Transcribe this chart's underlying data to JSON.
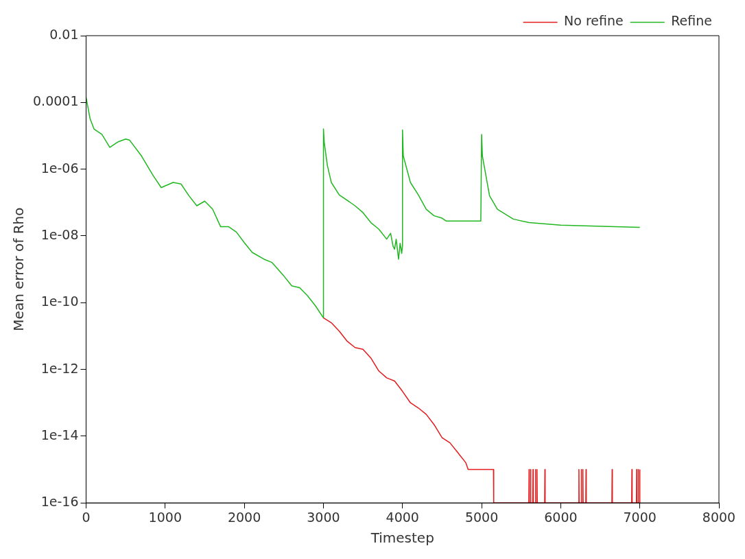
{
  "chart_data": {
    "type": "line",
    "xlabel": "Timestep",
    "ylabel": "Mean error of Rho",
    "log": "y",
    "legend": "top right",
    "marker": "none",
    "line_style": "solid",
    "grid": false,
    "xlim": [
      0,
      8000
    ],
    "xticks": [
      0,
      1000,
      2000,
      3000,
      4000,
      5000,
      6000,
      7000,
      8000
    ],
    "ylim": [
      1e-16,
      0.01
    ],
    "yticks": [
      {
        "value": 1e-16,
        "label": "1e-16"
      },
      {
        "value": 1e-14,
        "label": "1e-14"
      },
      {
        "value": 1e-12,
        "label": "1e-12"
      },
      {
        "value": 1e-10,
        "label": "1e-10"
      },
      {
        "value": 1e-08,
        "label": "1e-08"
      },
      {
        "value": 1e-06,
        "label": "1e-06"
      },
      {
        "value": 0.0001,
        "label": "0.0001"
      },
      {
        "value": 0.01,
        "label": "0.01"
      }
    ],
    "series": [
      {
        "name": "No refine",
        "color": "#e41a1c",
        "x": [
          3000,
          3100,
          3200,
          3300,
          3400,
          3500,
          3600,
          3700,
          3800,
          3900,
          4000,
          4100,
          4200,
          4300,
          4400,
          4500,
          4600,
          4700,
          4800,
          4830,
          5150,
          5153,
          5597,
          5600,
          5603,
          5617,
          5620,
          5623,
          5647,
          5650,
          5653,
          5677,
          5680,
          5683,
          5697,
          5700,
          5703,
          5797,
          5800,
          5803,
          6227,
          6230,
          6233,
          6257,
          6260,
          6263,
          6277,
          6280,
          6283,
          6317,
          6320,
          6323,
          6647,
          6650,
          6653,
          6897,
          6900,
          6903,
          6957,
          6960,
          6963,
          6977,
          6980,
          6983,
          6997,
          7000
        ],
        "values": [
          3.5e-11,
          2.5e-11,
          1.4e-11,
          7e-12,
          4.5e-12,
          4e-12,
          2.2e-12,
          9e-13,
          5.6e-13,
          4.5e-13,
          2.2e-13,
          1e-13,
          7e-14,
          4.5e-14,
          2.2e-14,
          9e-15,
          6.3e-15,
          3.2e-15,
          1.6e-15,
          1e-15,
          1e-15,
          1e-16,
          1e-16,
          1e-15,
          1e-16,
          1e-16,
          1e-15,
          1e-16,
          1e-16,
          1e-15,
          1e-16,
          1e-16,
          1e-15,
          1e-16,
          1e-16,
          1e-15,
          1e-16,
          1e-16,
          1e-15,
          1e-16,
          1e-16,
          1e-15,
          1e-16,
          1e-16,
          1e-15,
          1e-16,
          1e-16,
          1e-15,
          1e-16,
          1e-16,
          1e-15,
          1e-16,
          1e-16,
          1e-15,
          1e-16,
          1e-16,
          1e-15,
          1e-16,
          1e-16,
          1e-15,
          1e-16,
          1e-16,
          1e-15,
          1e-16,
          1e-16,
          1e-15
        ]
      },
      {
        "name": "Refine",
        "color": "#1fb71f",
        "x": [
          0,
          50,
          100,
          200,
          300,
          400,
          500,
          550,
          700,
          850,
          950,
          1100,
          1200,
          1300,
          1400,
          1500,
          1600,
          1700,
          1800,
          1900,
          2000,
          2100,
          2250,
          2350,
          2500,
          2600,
          2700,
          2800,
          2900,
          3000,
          3001,
          3010,
          3050,
          3100,
          3200,
          3400,
          3500,
          3600,
          3700,
          3800,
          3850,
          3880,
          3900,
          3920,
          3950,
          3970,
          3990,
          3999,
          4000,
          4010,
          4100,
          4200,
          4300,
          4400,
          4500,
          4550,
          4990,
          5000,
          5010,
          5100,
          5200,
          5400,
          5600,
          6000,
          7000
        ],
        "values": [
          0.00014,
          3.3e-05,
          1.6e-05,
          1.1e-05,
          4.5e-06,
          6.5e-06,
          8e-06,
          7.4e-06,
          2.5e-06,
          6.3e-07,
          2.8e-07,
          4e-07,
          3.6e-07,
          1.6e-07,
          8e-08,
          1.1e-07,
          6.3e-08,
          1.9e-08,
          1.9e-08,
          1.3e-08,
          6.3e-09,
          3.2e-09,
          2e-09,
          1.6e-09,
          6.3e-10,
          3.2e-10,
          2.8e-10,
          1.6e-10,
          8e-11,
          3.5e-11,
          1.6e-05,
          6.5e-06,
          1.3e-06,
          4e-07,
          1.7e-07,
          8e-08,
          5e-08,
          2.5e-08,
          1.6e-08,
          8e-09,
          1.2e-08,
          5e-09,
          4e-09,
          8e-09,
          2e-09,
          6e-09,
          3e-09,
          5e-09,
          1.5e-05,
          2.5e-06,
          4e-07,
          1.7e-07,
          6.3e-08,
          4e-08,
          3.4e-08,
          2.8e-08,
          2.8e-08,
          1.1e-05,
          2.5e-06,
          1.6e-07,
          6.3e-08,
          3.2e-08,
          2.5e-08,
          2.1e-08,
          1.8e-08
        ]
      }
    ]
  }
}
